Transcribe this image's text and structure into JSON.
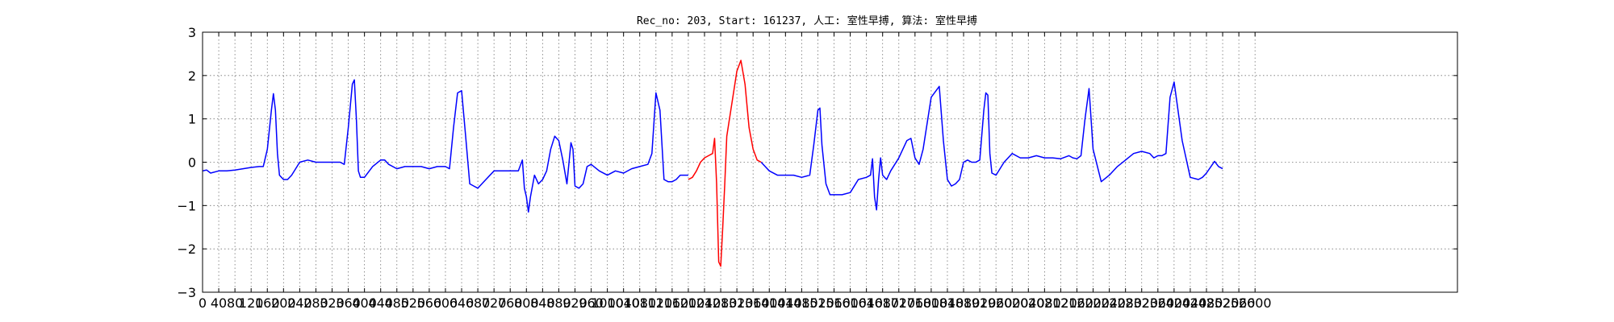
{
  "chart_data": {
    "type": "line",
    "title": "Rec_no: 203, Start: 161237, 人工: 室性早搏, 算法: 室性早搏",
    "xlabel": "",
    "ylabel": "",
    "xlim": [
      0,
      3100
    ],
    "ylim": [
      -3,
      3
    ],
    "grid": true,
    "yticks": [
      3,
      2,
      1,
      0,
      -1,
      -2,
      -3
    ],
    "ytick_labels": [
      "3",
      "2",
      "1",
      "0",
      "−1",
      "−2",
      "−3"
    ],
    "xticks": [
      0,
      40,
      80,
      120,
      160,
      200,
      240,
      280,
      320,
      360,
      400,
      440,
      480,
      520,
      560,
      600,
      640,
      680,
      720,
      760,
      800,
      840,
      880,
      920,
      960,
      1000,
      1040,
      1080,
      1120,
      1160,
      1200,
      1240,
      1280,
      1320,
      1360,
      1400,
      1440,
      1480,
      1520,
      1560,
      1600,
      1640,
      1680,
      1720,
      1760,
      1800,
      1840,
      1880,
      1920,
      1960,
      2000,
      2040,
      2080,
      2120,
      2160,
      2200,
      2240,
      2280,
      2320,
      2360,
      2400,
      2440,
      2480,
      2520,
      2560,
      2600
    ],
    "xtick_labels": [
      "0",
      "40",
      "80",
      "120",
      "160",
      "200",
      "240",
      "280",
      "320",
      "360",
      "400",
      "440",
      "480",
      "520",
      "560",
      "600",
      "640",
      "680",
      "720",
      "760",
      "800",
      "840",
      "880",
      "920",
      "960",
      "1000",
      "1040",
      "1080",
      "1120",
      "1160",
      "1200",
      "1240",
      "1280",
      "1320",
      "1360",
      "1400",
      "1440",
      "1480",
      "1520",
      "1560",
      "1600",
      "1640",
      "1680",
      "1720",
      "1760",
      "1800",
      "1840",
      "1880",
      "1920",
      "1960",
      "2000",
      "2040",
      "2080",
      "2120",
      "2160",
      "2200",
      "2240",
      "2280",
      "2320",
      "2360",
      "2400",
      "2440",
      "2480",
      "2520",
      "2560",
      "2600"
    ],
    "series": [
      {
        "color": "#0000ff",
        "segments": [
          {
            "x": [
              0,
              10,
              20,
              40,
              60,
              80,
              100,
              120,
              140,
              150,
              160,
              170,
              175,
              180,
              185,
              190,
              200,
              210,
              220,
              240,
              260,
              280,
              300,
              320,
              340,
              350,
              360,
              370,
              375,
              380,
              385,
              390,
              400,
              420,
              440,
              450,
              460,
              480,
              500,
              520,
              540,
              560,
              580,
              600,
              610,
              620,
              630,
              640,
              650,
              660,
              670,
              680,
              700,
              720,
              740,
              760,
              780,
              790,
              795,
              800,
              805,
              810,
              820,
              830,
              840,
              850,
              860,
              870,
              880,
              890,
              900,
              910,
              915,
              920,
              930,
              940,
              950,
              960,
              980,
              1000,
              1020,
              1040,
              1060,
              1080,
              1100,
              1110,
              1120,
              1130,
              1140,
              1150,
              1160,
              1170,
              1180,
              1200
            ],
            "y": [
              -0.2,
              -0.18,
              -0.25,
              -0.2,
              -0.2,
              -0.18,
              -0.15,
              -0.12,
              -0.1,
              -0.1,
              0.3,
              1.2,
              1.58,
              1.2,
              0.2,
              -0.3,
              -0.4,
              -0.4,
              -0.3,
              0,
              0.05,
              0,
              0,
              0,
              0,
              -0.05,
              0.8,
              1.8,
              1.9,
              1.0,
              -0.2,
              -0.35,
              -0.35,
              -0.1,
              0.05,
              0.05,
              -0.05,
              -0.15,
              -0.1,
              -0.1,
              -0.1,
              -0.15,
              -0.1,
              -0.1,
              -0.15,
              0.8,
              1.6,
              1.65,
              0.6,
              -0.5,
              -0.55,
              -0.6,
              -0.4,
              -0.2,
              -0.2,
              -0.2,
              -0.2,
              0.05,
              -0.6,
              -0.8,
              -1.15,
              -0.8,
              -0.3,
              -0.5,
              -0.4,
              -0.2,
              0.3,
              0.6,
              0.5,
              0.05,
              -0.5,
              0.45,
              0.3,
              -0.55,
              -0.6,
              -0.5,
              -0.1,
              -0.05,
              -0.2,
              -0.3,
              -0.2,
              -0.25,
              -0.15,
              -0.1,
              -0.05,
              0.2,
              1.6,
              1.2,
              -0.4,
              -0.45,
              -0.45,
              -0.4,
              -0.3,
              -0.3
            ]
          },
          {
            "x": [
              1380,
              1390,
              1400,
              1420,
              1440,
              1460,
              1480,
              1500,
              1510,
              1520,
              1525,
              1530,
              1540,
              1550,
              1560,
              1580,
              1600,
              1620,
              1640,
              1650,
              1655,
              1660,
              1665,
              1670,
              1675,
              1680,
              1690,
              1700,
              1720,
              1730,
              1740,
              1750,
              1760,
              1770,
              1780,
              1800,
              1820,
              1830,
              1840,
              1850,
              1860,
              1870,
              1880,
              1890,
              1900,
              1910,
              1920,
              1930,
              1935,
              1940,
              1945,
              1950,
              1960,
              1980,
              2000,
              2020,
              2040,
              2060,
              2080,
              2100,
              2120,
              2140,
              2150,
              2160,
              2170,
              2180,
              2190,
              2200,
              2220,
              2240,
              2260,
              2280,
              2300,
              2320,
              2340,
              2350,
              2360,
              2370,
              2380,
              2390,
              2400,
              2420,
              2440,
              2460,
              2470,
              2480,
              2500,
              2510,
              2520
            ],
            "y": [
              0,
              -0.1,
              -0.2,
              -0.3,
              -0.3,
              -0.3,
              -0.35,
              -0.3,
              0.4,
              1.2,
              1.25,
              0.4,
              -0.5,
              -0.75,
              -0.75,
              -0.75,
              -0.7,
              -0.4,
              -0.35,
              -0.3,
              0.08,
              -0.8,
              -1.1,
              -0.4,
              0.1,
              -0.3,
              -0.4,
              -0.2,
              0.1,
              0.3,
              0.5,
              0.55,
              0.1,
              -0.05,
              0.3,
              1.5,
              1.75,
              0.5,
              -0.4,
              -0.55,
              -0.5,
              -0.4,
              0,
              0.05,
              0.0,
              0,
              0.05,
              1.2,
              1.6,
              1.55,
              0.2,
              -0.25,
              -0.3,
              0.0,
              0.2,
              0.1,
              0.1,
              0.15,
              0.1,
              0.1,
              0.08,
              0.15,
              0.1,
              0.08,
              0.15,
              1.0,
              1.7,
              0.3,
              -0.45,
              -0.3,
              -0.1,
              0.05,
              0.2,
              0.25,
              0.2,
              0.1,
              0.15,
              0.15,
              0.2,
              1.5,
              1.85,
              0.5,
              -0.35,
              -0.4,
              -0.35,
              -0.25,
              0.02,
              -0.1,
              -0.15
            ]
          }
        ]
      },
      {
        "color": "#ff0000",
        "segments": [
          {
            "x": [
              1200,
              1210,
              1220,
              1230,
              1240,
              1250,
              1260,
              1265,
              1270,
              1275,
              1280,
              1285,
              1290,
              1295,
              1300,
              1305,
              1310,
              1320,
              1330,
              1340,
              1350,
              1360,
              1370,
              1380
            ],
            "y": [
              -0.4,
              -0.35,
              -0.2,
              0,
              0.1,
              0.15,
              0.2,
              0.55,
              -0.5,
              -2.3,
              -2.4,
              -1.5,
              -0.5,
              0.6,
              0.9,
              1.2,
              1.5,
              2.1,
              2.35,
              1.8,
              0.8,
              0.3,
              0.05,
              0
            ]
          }
        ]
      }
    ]
  }
}
